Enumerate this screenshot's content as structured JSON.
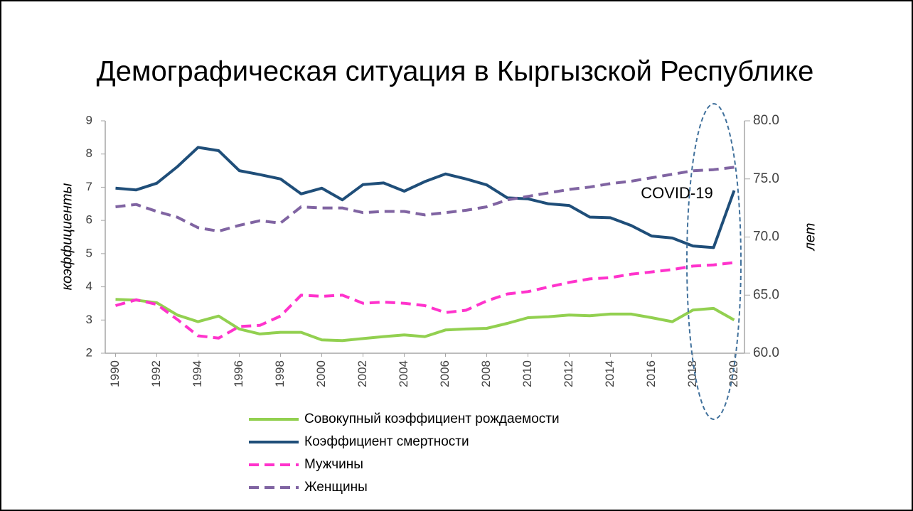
{
  "chart_data": {
    "type": "line",
    "title": "Демографическая ситуация в Кыргызской Республике",
    "ylabel": "коэффициенты",
    "y2label": "лет",
    "annotation": "COVID-19",
    "x": [
      1990,
      1991,
      1992,
      1993,
      1994,
      1995,
      1996,
      1997,
      1998,
      1999,
      2000,
      2001,
      2002,
      2003,
      2004,
      2005,
      2006,
      2007,
      2008,
      2009,
      2010,
      2011,
      2012,
      2013,
      2014,
      2015,
      2016,
      2017,
      2018,
      2019,
      2020
    ],
    "xlim": [
      1989.5,
      2020.5
    ],
    "xticks": [
      1990,
      1992,
      1994,
      1996,
      1998,
      2000,
      2002,
      2004,
      2006,
      2008,
      2010,
      2012,
      2014,
      2016,
      2018,
      2020
    ],
    "ylim": [
      2,
      9
    ],
    "yticks": [
      2,
      3,
      4,
      5,
      6,
      7,
      8,
      9
    ],
    "y2lim": [
      60,
      80
    ],
    "y2ticks": [
      {
        "value": 60,
        "label": "60.0"
      },
      {
        "value": 65,
        "label": "65.0"
      },
      {
        "value": 70,
        "label": "70.0"
      },
      {
        "value": 75,
        "label": "75.0"
      },
      {
        "value": 80,
        "label": "80.0"
      }
    ],
    "series": [
      {
        "name": "Совокупный коэффициент рождаемости",
        "color": "#92d050",
        "dashed": false,
        "values": [
          3.62,
          3.6,
          3.52,
          3.15,
          2.95,
          3.12,
          2.73,
          2.58,
          2.63,
          2.63,
          2.4,
          2.38,
          2.44,
          2.5,
          2.55,
          2.5,
          2.7,
          2.73,
          2.75,
          2.9,
          3.07,
          3.1,
          3.15,
          3.13,
          3.18,
          3.18,
          3.07,
          2.95,
          3.3,
          3.35,
          3.0
        ]
      },
      {
        "name": "Коэффициент смертности",
        "color": "#1f4e79",
        "dashed": false,
        "values": [
          6.97,
          6.92,
          7.12,
          7.62,
          8.2,
          8.1,
          7.5,
          7.38,
          7.25,
          6.8,
          6.97,
          6.62,
          7.08,
          7.13,
          6.88,
          7.17,
          7.4,
          7.25,
          7.07,
          6.68,
          6.65,
          6.5,
          6.45,
          6.1,
          6.08,
          5.85,
          5.53,
          5.47,
          5.23,
          5.18,
          6.9
        ]
      },
      {
        "name": "Мужчины",
        "color": "#ff33cc",
        "dashed": true,
        "axis": "y2",
        "values": [
          64.1,
          64.6,
          64.2,
          62.9,
          61.5,
          61.3,
          62.3,
          62.4,
          63.2,
          65.0,
          64.9,
          65.0,
          64.3,
          64.4,
          64.3,
          64.1,
          63.5,
          63.7,
          64.5,
          65.1,
          65.3,
          65.7,
          66.1,
          66.4,
          66.5,
          66.8,
          67.0,
          67.2,
          67.5,
          67.6,
          67.8
        ]
      },
      {
        "name": "Женщины",
        "color": "#8064a2",
        "dashed": true,
        "axis": "y2",
        "values": [
          72.6,
          72.8,
          72.2,
          71.7,
          70.8,
          70.5,
          71.0,
          71.4,
          71.2,
          72.6,
          72.5,
          72.5,
          72.1,
          72.2,
          72.2,
          71.9,
          72.1,
          72.3,
          72.6,
          73.2,
          73.5,
          73.8,
          74.1,
          74.3,
          74.6,
          74.8,
          75.1,
          75.4,
          75.7,
          75.8,
          76.0
        ]
      }
    ]
  }
}
